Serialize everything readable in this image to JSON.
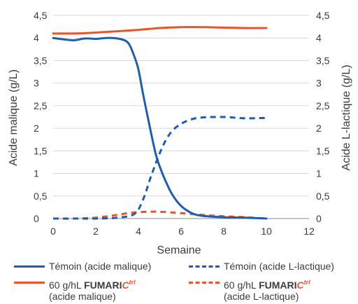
{
  "chart_data": {
    "type": "line",
    "xlabel": "Semaine",
    "ylabel_left": "Acide malique (g/L)",
    "ylabel_right": "Acide L-lactique (g/L)",
    "xlim": [
      0,
      12
    ],
    "ylim_left": [
      0,
      4.5
    ],
    "ylim_right": [
      0,
      4.5
    ],
    "x_ticks": [
      "0",
      "2",
      "4",
      "6",
      "8",
      "10",
      "12"
    ],
    "y_ticks_left": [
      "0",
      "0,5",
      "1",
      "1,5",
      "2",
      "2,5",
      "3",
      "3,5",
      "4",
      "4,5"
    ],
    "y_ticks_right": [
      "0",
      "0,5",
      "1",
      "1,5",
      "2",
      "2,5",
      "3",
      "3,5",
      "4",
      "4,5"
    ],
    "grid": "horizontal",
    "legend_position": "bottom",
    "colors": {
      "blue": "#1f5ea8",
      "orange": "#e8552b",
      "grid": "#d9d9d9",
      "axis": "#8c8c8c"
    },
    "series": [
      {
        "name": "Témoin (acide malique)",
        "color": "#1f5ea8",
        "style": "solid",
        "axis": "left",
        "points": [
          [
            0,
            4.0
          ],
          [
            0.5,
            3.97
          ],
          [
            1,
            3.95
          ],
          [
            1.5,
            3.99
          ],
          [
            2,
            3.98
          ],
          [
            2.5,
            4.0
          ],
          [
            3,
            3.99
          ],
          [
            3.5,
            3.9
          ],
          [
            3.8,
            3.6
          ],
          [
            4,
            3.3
          ],
          [
            4.2,
            2.8
          ],
          [
            4.5,
            2.1
          ],
          [
            4.8,
            1.45
          ],
          [
            5,
            1.15
          ],
          [
            5.3,
            0.8
          ],
          [
            5.6,
            0.52
          ],
          [
            6,
            0.28
          ],
          [
            6.5,
            0.12
          ],
          [
            7,
            0.06
          ],
          [
            8,
            0.03
          ],
          [
            9,
            0.02
          ],
          [
            10,
            0.0
          ]
        ]
      },
      {
        "name": "Témoin (acide L-lactique)",
        "color": "#1f5ea8",
        "style": "dashed",
        "axis": "right",
        "points": [
          [
            0,
            0.0
          ],
          [
            1,
            0.0
          ],
          [
            2,
            0.0
          ],
          [
            3,
            0.02
          ],
          [
            3.8,
            0.1
          ],
          [
            4.2,
            0.4
          ],
          [
            4.6,
            0.95
          ],
          [
            5,
            1.45
          ],
          [
            5.3,
            1.75
          ],
          [
            5.6,
            1.95
          ],
          [
            6,
            2.1
          ],
          [
            6.5,
            2.2
          ],
          [
            7,
            2.24
          ],
          [
            8,
            2.25
          ],
          [
            9,
            2.22
          ],
          [
            10,
            2.23
          ]
        ]
      },
      {
        "name": "60 g/hL FUMARICtrl (acide malique)",
        "color": "#e8552b",
        "style": "solid",
        "axis": "left",
        "points": [
          [
            0,
            4.1
          ],
          [
            1,
            4.1
          ],
          [
            2,
            4.12
          ],
          [
            3,
            4.15
          ],
          [
            4,
            4.18
          ],
          [
            5,
            4.22
          ],
          [
            6,
            4.24
          ],
          [
            7,
            4.24
          ],
          [
            8,
            4.23
          ],
          [
            9,
            4.22
          ],
          [
            10,
            4.22
          ]
        ]
      },
      {
        "name": "60 g/hL FUMARICtrl (acide L-lactique)",
        "color": "#e8552b",
        "style": "dashed",
        "axis": "right",
        "points": [
          [
            0,
            0.0
          ],
          [
            1,
            0.0
          ],
          [
            2,
            0.02
          ],
          [
            3,
            0.08
          ],
          [
            3.5,
            0.12
          ],
          [
            4,
            0.14
          ],
          [
            4.5,
            0.15
          ],
          [
            5,
            0.15
          ],
          [
            6,
            0.12
          ],
          [
            7,
            0.08
          ],
          [
            8,
            0.05
          ],
          [
            9,
            0.03
          ],
          [
            10,
            0.0
          ]
        ]
      }
    ]
  },
  "legend": {
    "item1": "Témoin (acide malique)",
    "item2": "Témoin (acide L-lactique)",
    "item3_prefix": "60 g/hL",
    "item3_brand": "FUMARI",
    "item3_brand_c": "C",
    "item3_brand_sup": "trl",
    "item3_suffix": "(acide malique)",
    "item4_prefix": "60 g/hL",
    "item4_brand": "FUMARI",
    "item4_brand_c": "C",
    "item4_brand_sup": "trl",
    "item4_suffix": "(acide L-lactique)"
  }
}
